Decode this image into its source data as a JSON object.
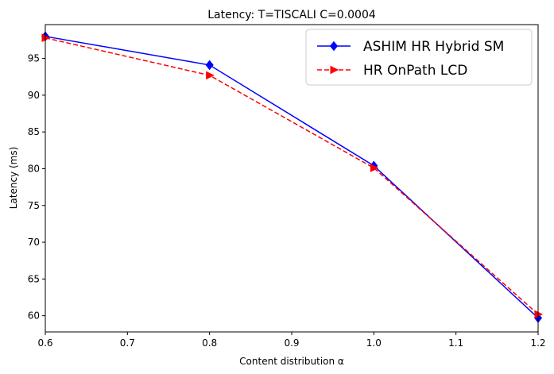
{
  "chart_data": {
    "type": "line",
    "title": "Latency: T=TISCALI C=0.0004",
    "xlabel": "Content distribution α",
    "ylabel": "Latency (ms)",
    "xlim": [
      0.6,
      1.2
    ],
    "ylim": [
      57.8,
      99.6
    ],
    "xticks": [
      0.6,
      0.7,
      0.8,
      0.9,
      1.0,
      1.1,
      1.2
    ],
    "xtick_labels": [
      "0.6",
      "0.7",
      "0.8",
      "0.9",
      "1.0",
      "1.1",
      "1.2"
    ],
    "yticks": [
      60,
      65,
      70,
      75,
      80,
      85,
      90,
      95
    ],
    "ytick_labels": [
      "60",
      "65",
      "70",
      "75",
      "80",
      "85",
      "90",
      "95"
    ],
    "grid": false,
    "legend_position": "top-right",
    "series": [
      {
        "name": "ASHIM HR Hybrid SM",
        "x": [
          0.6,
          0.8,
          1.0,
          1.2
        ],
        "y": [
          98.0,
          94.1,
          80.4,
          59.7
        ],
        "color": "#0000ff",
        "linestyle": "solid",
        "marker": "diamond"
      },
      {
        "name": "HR OnPath LCD",
        "x": [
          0.6,
          0.8,
          1.0,
          1.2
        ],
        "y": [
          97.8,
          92.7,
          80.1,
          60.2
        ],
        "color": "#ff0000",
        "linestyle": "dashed",
        "marker": "triangle-right"
      }
    ]
  }
}
